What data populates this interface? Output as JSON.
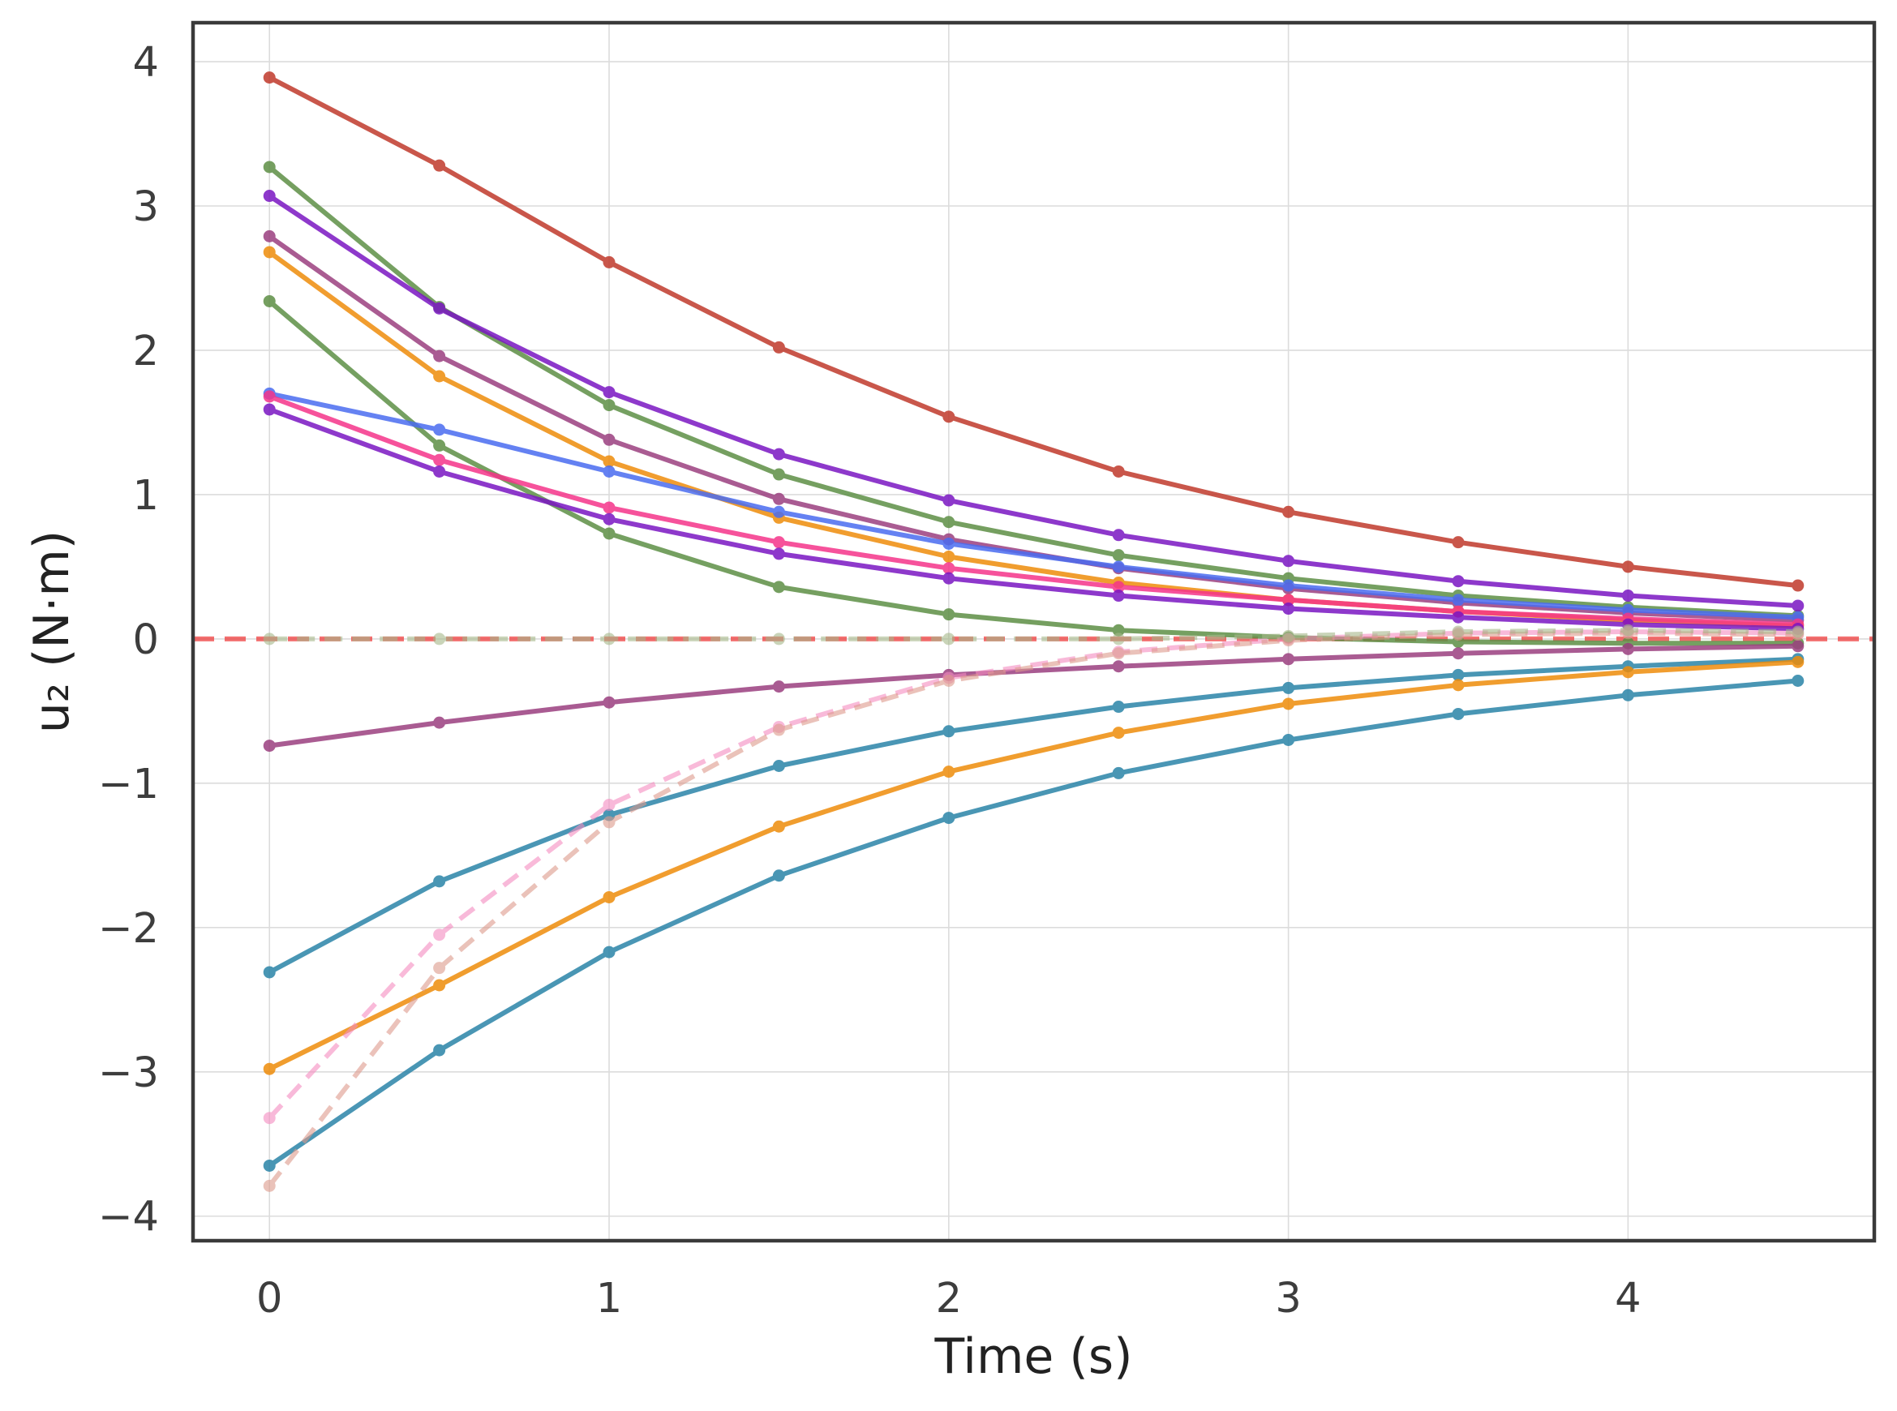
{
  "chart_data": {
    "type": "line",
    "title": "",
    "xlabel": "Time (s)",
    "ylabel": "u₂ (N·m)",
    "xlim": [
      -0.225,
      4.725
    ],
    "ylim": [
      -4.17,
      4.27
    ],
    "xticks": [
      0,
      1,
      2,
      3,
      4
    ],
    "yticks": [
      -4,
      -3,
      -2,
      -1,
      0,
      1,
      2,
      3,
      4
    ],
    "xtick_labels": [
      "0",
      "1",
      "2",
      "3",
      "4"
    ],
    "ytick_labels": [
      "−4",
      "−3",
      "−2",
      "−1",
      "0",
      "1",
      "2",
      "3",
      "4"
    ],
    "grid": true,
    "legend": "none",
    "x": [
      0,
      0.5,
      1,
      1.5,
      2,
      2.5,
      3,
      3.5,
      4,
      4.5
    ],
    "reference_line": {
      "y": 0,
      "color": "#ee3333",
      "style": "dashed"
    },
    "series": [
      {
        "color": "#c0392b",
        "dashed": false,
        "values": [
          3.89,
          3.28,
          2.61,
          2.02,
          1.54,
          1.16,
          0.88,
          0.67,
          0.5,
          0.37
        ]
      },
      {
        "color": "#5d8f45",
        "dashed": false,
        "values": [
          3.27,
          2.3,
          1.62,
          1.14,
          0.81,
          0.58,
          0.42,
          0.3,
          0.22,
          0.16
        ]
      },
      {
        "color": "#7a16c2",
        "dashed": false,
        "values": [
          3.07,
          2.29,
          1.71,
          1.28,
          0.96,
          0.72,
          0.54,
          0.4,
          0.3,
          0.23
        ]
      },
      {
        "color": "#9b3f7f",
        "dashed": false,
        "values": [
          2.79,
          1.96,
          1.38,
          0.97,
          0.69,
          0.49,
          0.35,
          0.25,
          0.18,
          0.13
        ]
      },
      {
        "color": "#ee8c0a",
        "dashed": false,
        "values": [
          2.68,
          1.82,
          1.23,
          0.84,
          0.57,
          0.39,
          0.27,
          0.19,
          0.13,
          0.09
        ]
      },
      {
        "color": "#5d8f45",
        "dashed": false,
        "values": [
          2.34,
          1.34,
          0.73,
          0.36,
          0.17,
          0.06,
          0.01,
          -0.02,
          -0.03,
          -0.03
        ]
      },
      {
        "color": "#4a6cf0",
        "dashed": false,
        "values": [
          1.7,
          1.45,
          1.16,
          0.88,
          0.66,
          0.5,
          0.37,
          0.27,
          0.2,
          0.15
        ]
      },
      {
        "color": "#f5348a",
        "dashed": false,
        "values": [
          1.68,
          1.24,
          0.91,
          0.67,
          0.49,
          0.36,
          0.27,
          0.19,
          0.14,
          0.1
        ]
      },
      {
        "color": "#7a16c2",
        "dashed": false,
        "values": [
          1.59,
          1.16,
          0.83,
          0.59,
          0.42,
          0.3,
          0.21,
          0.15,
          0.1,
          0.07
        ]
      },
      {
        "color": "#9b3f7f",
        "dashed": false,
        "values": [
          -0.74,
          -0.58,
          -0.44,
          -0.33,
          -0.25,
          -0.19,
          -0.14,
          -0.1,
          -0.07,
          -0.05
        ]
      },
      {
        "color": "#2a84a8",
        "dashed": false,
        "values": [
          -2.31,
          -1.68,
          -1.22,
          -0.88,
          -0.64,
          -0.47,
          -0.34,
          -0.25,
          -0.19,
          -0.14
        ]
      },
      {
        "color": "#ee8c0a",
        "dashed": false,
        "values": [
          -2.98,
          -2.4,
          -1.79,
          -1.3,
          -0.92,
          -0.65,
          -0.45,
          -0.32,
          -0.23,
          -0.16
        ]
      },
      {
        "color": "#2a84a8",
        "dashed": false,
        "values": [
          -3.65,
          -2.85,
          -2.17,
          -1.64,
          -1.24,
          -0.93,
          -0.7,
          -0.52,
          -0.39,
          -0.29
        ]
      },
      {
        "color": "#f58cc0",
        "dashed": true,
        "values": [
          -3.32,
          -2.05,
          -1.15,
          -0.61,
          -0.27,
          -0.09,
          0.0,
          0.04,
          0.05,
          0.04
        ]
      },
      {
        "color": "#dd9a8c",
        "dashed": true,
        "values": [
          -3.79,
          -2.28,
          -1.27,
          -0.63,
          -0.29,
          -0.1,
          -0.01,
          0.03,
          0.04,
          0.03
        ]
      },
      {
        "color": "#a6b88a",
        "dashed": true,
        "values": [
          0.0,
          0.0,
          0.0,
          0.0,
          0.0,
          0.0,
          0.02,
          0.05,
          0.06,
          0.05
        ]
      }
    ]
  }
}
